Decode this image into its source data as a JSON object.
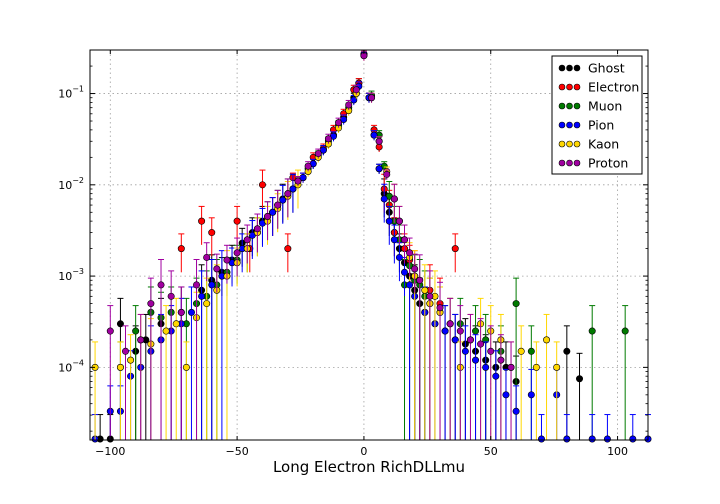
{
  "chart_data": {
    "type": "scatter",
    "title": "",
    "xlabel": "Long Electron RichDLLmu",
    "ylabel": "",
    "xlim": [
      -108,
      112
    ],
    "ylim": [
      1.6e-05,
      0.3
    ],
    "yscale": "log",
    "grid": true,
    "legend_position": "top-right",
    "x_ticks": [
      -100,
      -50,
      0,
      50,
      100
    ],
    "x_tick_labels": [
      "−100",
      "−50",
      "0",
      "50",
      "100"
    ],
    "y_tick_exponents": [
      -4,
      -3,
      -2,
      -1
    ],
    "series": [
      {
        "name": "Ghost",
        "color": "#000000",
        "x": [
          -104,
          -100,
          -96,
          -90,
          -86,
          -80,
          -72,
          -64,
          -60,
          -56,
          -52,
          -48,
          -44,
          -40,
          -36,
          -32,
          -28,
          -24,
          -20,
          -16,
          -12,
          -8,
          -4,
          -2,
          0,
          2,
          4,
          6,
          8,
          10,
          12,
          14,
          16,
          18,
          20,
          22,
          24,
          28,
          32,
          36,
          40,
          44,
          48,
          52,
          56,
          60,
          80,
          85
        ],
        "y": [
          1.6e-05,
          1.6e-05,
          0.0003,
          0.00015,
          0.0002,
          0.0003,
          0.0004,
          0.0007,
          0.0009,
          0.0011,
          0.0015,
          0.0023,
          0.003,
          0.004,
          0.005,
          0.007,
          0.009,
          0.012,
          0.017,
          0.024,
          0.035,
          0.055,
          0.09,
          0.13,
          0.27,
          0.09,
          0.035,
          0.015,
          0.008,
          0.005,
          0.003,
          0.002,
          0.0014,
          0.001,
          0.0007,
          0.0005,
          0.0004,
          0.0003,
          0.00025,
          0.0002,
          0.00018,
          0.00015,
          0.00012,
          0.0001,
          0.0001,
          7e-05,
          0.00015,
          7.5e-05
        ]
      },
      {
        "name": "Electron",
        "color": "#ff0000",
        "x": [
          -72,
          -64,
          -60,
          -50,
          -45,
          -40,
          -36,
          -30,
          -28,
          -24,
          -20,
          -16,
          -12,
          -8,
          -4,
          -2,
          0,
          2,
          4,
          6,
          8,
          10,
          12,
          16,
          18,
          20,
          26,
          30,
          36
        ],
        "y": [
          0.002,
          0.004,
          0.003,
          0.004,
          0.002,
          0.01,
          0.005,
          0.002,
          0.012,
          0.012,
          0.02,
          0.025,
          0.04,
          0.06,
          0.11,
          0.13,
          0.27,
          0.09,
          0.04,
          0.026,
          0.009,
          0.006,
          0.003,
          0.002,
          0.0015,
          0.001,
          0.0007,
          0.0005,
          0.002
        ]
      },
      {
        "name": "Muon",
        "color": "#007a00",
        "x": [
          -96,
          -90,
          -84,
          -80,
          -76,
          -70,
          -66,
          -62,
          -58,
          -54,
          -50,
          -46,
          -42,
          -38,
          -34,
          -30,
          -26,
          -22,
          -18,
          -14,
          -10,
          -6,
          -3,
          0,
          3,
          6,
          8,
          10,
          12,
          14,
          16,
          18,
          20,
          22,
          24,
          26,
          30,
          34,
          38,
          44,
          48,
          54,
          60,
          66,
          90,
          103
        ],
        "y": [
          0.0001,
          0.00025,
          0.0004,
          0.00035,
          0.0004,
          0.0003,
          0.0005,
          0.0006,
          0.0008,
          0.0011,
          0.0015,
          0.002,
          0.003,
          0.0045,
          0.006,
          0.008,
          0.011,
          0.015,
          0.021,
          0.03,
          0.045,
          0.07,
          0.1,
          0.27,
          0.095,
          0.035,
          0.016,
          0.0075,
          0.004,
          0.0025,
          0.0008,
          0.0013,
          0.0009,
          0.0008,
          0.0006,
          0.0005,
          0.0004,
          0.0003,
          0.0003,
          0.00025,
          0.0002,
          0.00015,
          0.0005,
          0.00015,
          0.00025,
          0.00025
        ]
      },
      {
        "name": "Pion",
        "color": "#0000ff",
        "x": [
          -106,
          -100,
          -96,
          -92,
          -88,
          -84,
          -80,
          -76,
          -72,
          -68,
          -64,
          -60,
          -56,
          -52,
          -48,
          -44,
          -40,
          -36,
          -32,
          -28,
          -24,
          -20,
          -16,
          -12,
          -8,
          -4,
          -2,
          0,
          2,
          4,
          6,
          8,
          10,
          12,
          14,
          16,
          18,
          20,
          24,
          28,
          32,
          36,
          40,
          44,
          48,
          52,
          56,
          60,
          66,
          70,
          76,
          80,
          90,
          96,
          106,
          112
        ],
        "y": [
          1.6e-05,
          3.3e-05,
          3.3e-05,
          8e-05,
          0.0001,
          0.00015,
          0.0002,
          0.00025,
          0.0003,
          0.0004,
          0.0006,
          0.0008,
          0.001,
          0.0014,
          0.002,
          0.0028,
          0.0038,
          0.005,
          0.0068,
          0.009,
          0.012,
          0.017,
          0.024,
          0.034,
          0.052,
          0.085,
          0.12,
          0.27,
          0.09,
          0.035,
          0.015,
          0.007,
          0.004,
          0.0025,
          0.0016,
          0.0011,
          0.0008,
          0.0006,
          0.0004,
          0.0003,
          0.00025,
          0.0002,
          0.00015,
          0.00012,
          0.0001,
          8e-05,
          5e-05,
          3.3e-05,
          5e-05,
          1.6e-05,
          5e-05,
          1.6e-05,
          1.6e-05,
          1.6e-05,
          1.6e-05,
          1.6e-05
        ]
      },
      {
        "name": "Kaon",
        "color": "#ffd700",
        "x": [
          -106,
          -96,
          -92,
          -88,
          -84,
          -78,
          -74,
          -70,
          -66,
          -62,
          -58,
          -54,
          -50,
          -46,
          -42,
          -38,
          -34,
          -30,
          -26,
          -22,
          -18,
          -14,
          -10,
          -6,
          -3,
          0,
          3,
          6,
          9,
          12,
          14,
          16,
          18,
          20,
          24,
          26,
          28,
          30,
          34,
          38,
          42,
          46,
          50,
          54,
          58,
          62,
          68,
          72,
          76
        ],
        "y": [
          0.0001,
          0.0001,
          0.00012,
          0.0002,
          0.00018,
          0.00025,
          0.0003,
          0.0001,
          0.00035,
          0.0005,
          0.0007,
          0.001,
          0.0014,
          0.002,
          0.003,
          0.004,
          0.0055,
          0.0075,
          0.01,
          0.014,
          0.02,
          0.028,
          0.042,
          0.065,
          0.1,
          0.26,
          0.09,
          0.03,
          0.014,
          0.007,
          0.004,
          0.0025,
          0.0016,
          0.001,
          0.0007,
          0.0005,
          0.0006,
          0.0004,
          0.0003,
          0.0001,
          0.0002,
          0.0003,
          0.00025,
          0.0002,
          0.0001,
          0.00015,
          0.0001,
          0.0002,
          0.0001
        ]
      },
      {
        "name": "Proton",
        "color": "#a000a0",
        "x": [
          -100,
          -94,
          -88,
          -84,
          -80,
          -76,
          -72,
          -66,
          -62,
          -58,
          -54,
          -50,
          -46,
          -42,
          -38,
          -34,
          -30,
          -26,
          -22,
          -18,
          -14,
          -10,
          -6,
          -3,
          0,
          3,
          6,
          9,
          12,
          14,
          16,
          18,
          20,
          22,
          26,
          30,
          34,
          38,
          42,
          46,
          50,
          54,
          58
        ],
        "y": [
          0.00025,
          0.00015,
          0.0002,
          0.0005,
          0.0008,
          0.0006,
          0.0004,
          0.0008,
          0.0016,
          0.0012,
          0.0015,
          0.0018,
          0.0025,
          0.0033,
          0.0045,
          0.006,
          0.008,
          0.011,
          0.016,
          0.022,
          0.032,
          0.048,
          0.075,
          0.11,
          0.26,
          0.09,
          0.03,
          0.013,
          0.007,
          0.004,
          0.0025,
          0.0018,
          0.0012,
          0.0009,
          0.0006,
          0.00045,
          0.0003,
          0.00025,
          0.0002,
          0.00018,
          0.00015,
          0.00012,
          0.0001
        ]
      }
    ]
  }
}
